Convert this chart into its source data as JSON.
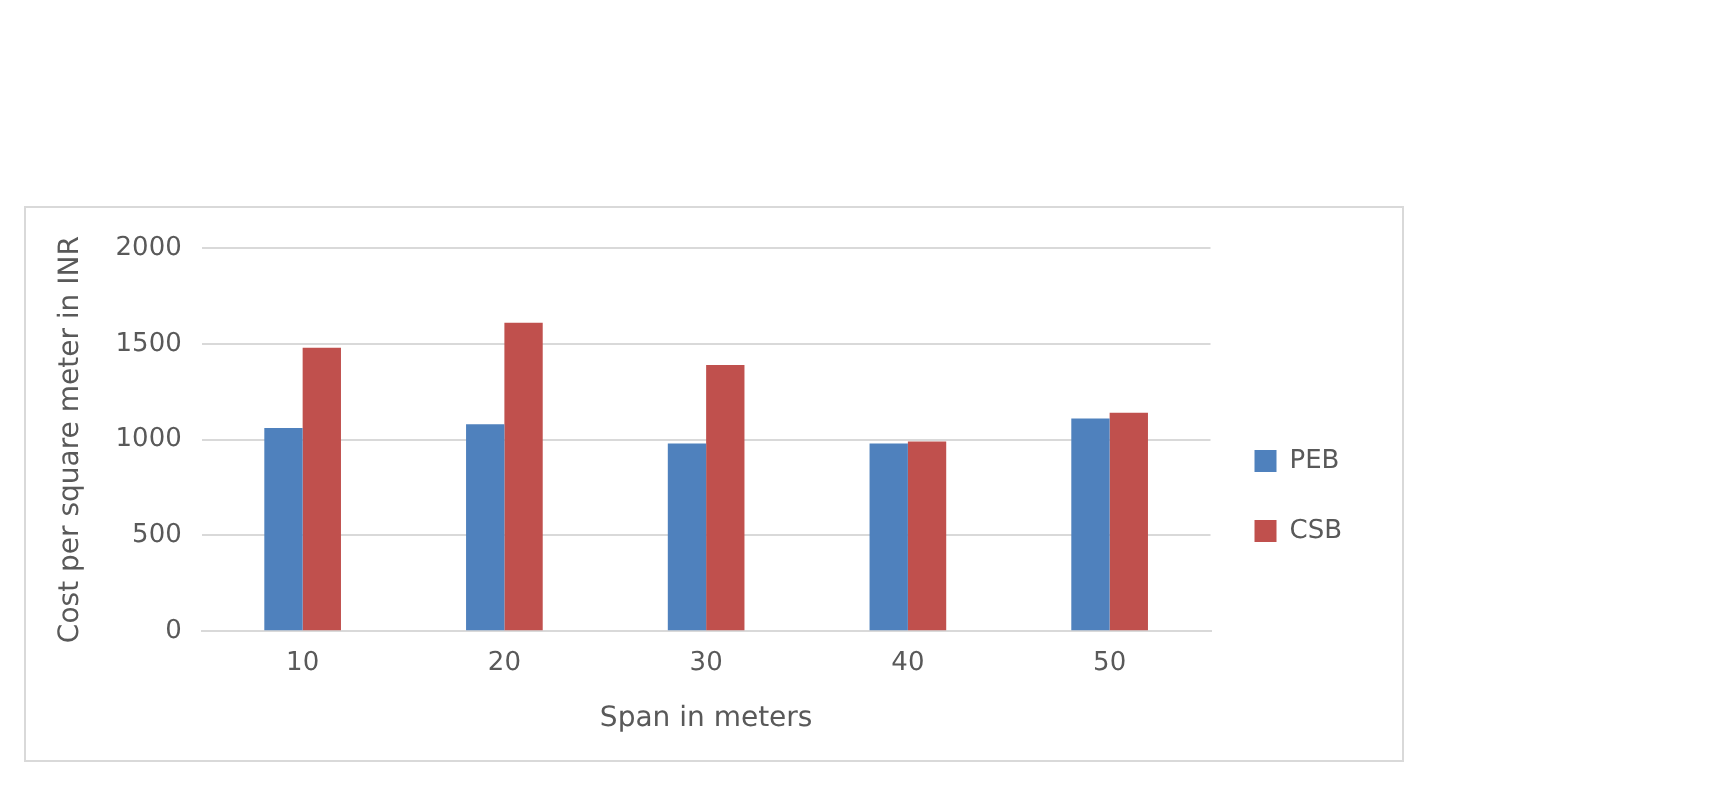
{
  "chart_data": {
    "type": "bar",
    "xlabel": "Span in meters",
    "ylabel": "Cost per square meter in INR",
    "categories": [
      "10",
      "20",
      "30",
      "40",
      "50"
    ],
    "series": [
      {
        "name": "PEB",
        "color": "#4f81bd",
        "values": [
          1060,
          1080,
          980,
          980,
          1110
        ]
      },
      {
        "name": "CSB",
        "color": "#c0504d",
        "values": [
          1480,
          1610,
          1390,
          990,
          1140
        ]
      }
    ],
    "ylim": [
      0,
      2000
    ],
    "yticks": [
      0,
      500,
      1000,
      1500,
      2000
    ],
    "grid": "y",
    "legend": "right"
  }
}
